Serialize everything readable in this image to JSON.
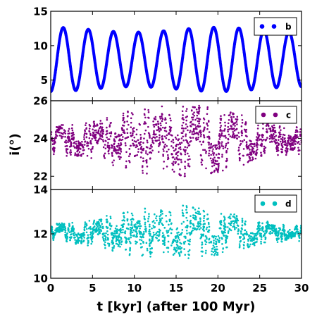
{
  "chart_data": {
    "type": "scatter",
    "x_label": "t [kyr] (after 100 Myr)",
    "y_label": "i(°)",
    "x_range": [
      0,
      30
    ],
    "x_ticks": [
      "0",
      "5",
      "10",
      "15",
      "20",
      "25",
      "30"
    ],
    "grid": false,
    "legend_placement": "top-right",
    "panels": [
      {
        "series_name": "b",
        "color": "#0000ff",
        "y_range": [
          2,
          15
        ],
        "y_ticks": [
          "5",
          "10",
          "15"
        ],
        "model": {
          "mean": 8.0,
          "amp_base": 4.3,
          "amp_mod": 0.35,
          "period_kyr": 3.0,
          "mod_period_kyr": 20.0
        }
      },
      {
        "series_name": "c",
        "color": "#800080",
        "y_range": [
          21.3,
          26
        ],
        "y_ticks": [
          "22",
          "24",
          "26"
        ],
        "model": {
          "mean": 23.9,
          "amp_base": 0.8,
          "amp_peak": 2.0,
          "envelope_center_kyr": 15.0,
          "envelope_period_kyr": 30.0
        }
      },
      {
        "series_name": "d",
        "color": "#00bfbf",
        "y_range": [
          10,
          14
        ],
        "y_ticks": [
          "10",
          "12",
          "14"
        ],
        "model": {
          "mean": 12.05,
          "amp_base": 0.4,
          "amp_peak": 1.25,
          "envelope_center_kyr": 14.5,
          "envelope_period_kyr": 30.0
        }
      }
    ]
  }
}
